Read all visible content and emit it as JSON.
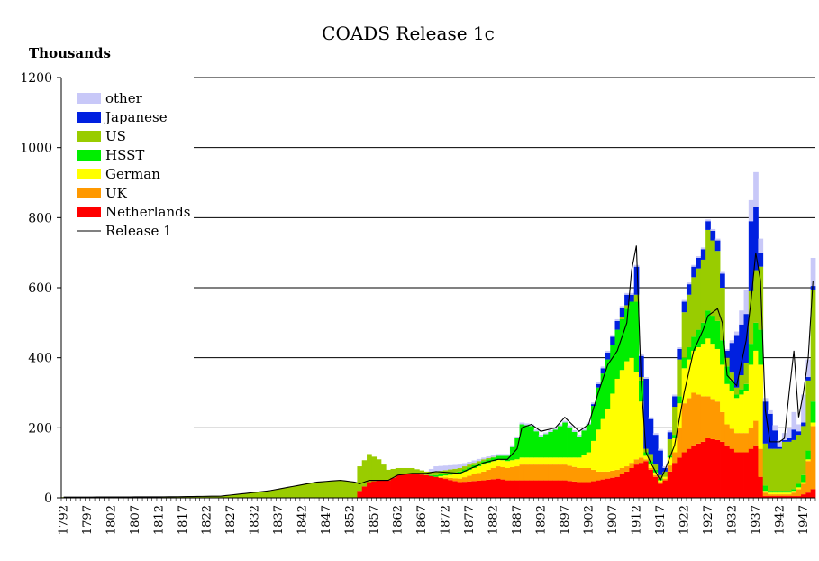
{
  "chart_data": {
    "type": "area",
    "title": "COADS Release 1c",
    "ylabel": "Thousands",
    "xlabel": "",
    "ylim": [
      0,
      1200
    ],
    "yticks": [
      0,
      200,
      400,
      600,
      800,
      1000,
      1200
    ],
    "xlim": [
      1792,
      1949
    ],
    "xticks": [
      1792,
      1797,
      1802,
      1807,
      1812,
      1817,
      1822,
      1827,
      1832,
      1837,
      1842,
      1847,
      1852,
      1857,
      1862,
      1867,
      1872,
      1877,
      1882,
      1887,
      1892,
      1897,
      1902,
      1907,
      1912,
      1917,
      1922,
      1927,
      1932,
      1937,
      1942,
      1947
    ],
    "grid": "horizontal",
    "legend_position": "top-left",
    "colors": {
      "other": "#c8c8f8",
      "Japanese": "#0020e0",
      "US": "#99cc00",
      "HSST": "#00ee00",
      "German": "#ffff00",
      "UK": "#ff9900",
      "Netherlands": "#ff0000",
      "Release 1": "#000000"
    },
    "legend": [
      "other",
      "Japanese",
      "US",
      "HSST",
      "German",
      "UK",
      "Netherlands",
      "Release 1"
    ],
    "note_stack_order": "stacked bottom to top: Netherlands, UK, German, HSST, US, Japanese, other; Release 1 drawn as line",
    "keyframes": {
      "years": [
        1792,
        1815,
        1825,
        1835,
        1845,
        1850,
        1853,
        1854,
        1856,
        1858,
        1860,
        1862,
        1865,
        1868,
        1870,
        1875,
        1880,
        1883,
        1885,
        1887,
        1888,
        1890,
        1892,
        1895,
        1897,
        1900,
        1902,
        1904,
        1906,
        1908,
        1910,
        1911,
        1912,
        1913,
        1914,
        1915,
        1917,
        1918,
        1920,
        1922,
        1924,
        1926,
        1927,
        1929,
        1930,
        1931,
        1933,
        1935,
        1936,
        1937,
        1938,
        1939,
        1940,
        1942,
        1943,
        1944,
        1945,
        1946,
        1947,
        1948,
        1949
      ],
      "Netherlands": [
        0,
        0,
        0,
        0,
        0,
        0,
        0,
        20,
        45,
        50,
        50,
        65,
        70,
        65,
        60,
        45,
        50,
        55,
        50,
        50,
        50,
        50,
        50,
        50,
        50,
        45,
        45,
        50,
        55,
        60,
        75,
        85,
        95,
        100,
        105,
        80,
        40,
        50,
        100,
        130,
        150,
        160,
        170,
        165,
        160,
        150,
        130,
        130,
        140,
        150,
        60,
        5,
        5,
        5,
        5,
        5,
        5,
        5,
        10,
        15,
        25
      ],
      "UK": [
        0,
        0,
        0,
        0,
        0,
        0,
        0,
        0,
        0,
        0,
        0,
        0,
        0,
        0,
        0,
        10,
        25,
        35,
        35,
        40,
        45,
        45,
        45,
        45,
        45,
        40,
        40,
        25,
        20,
        20,
        15,
        15,
        15,
        15,
        5,
        5,
        5,
        5,
        30,
        140,
        150,
        130,
        120,
        110,
        85,
        60,
        55,
        55,
        60,
        70,
        80,
        10,
        5,
        5,
        5,
        5,
        10,
        20,
        30,
        90,
        180
      ],
      "German": [
        0,
        0,
        0,
        0,
        0,
        0,
        0,
        0,
        0,
        0,
        0,
        0,
        0,
        0,
        0,
        15,
        20,
        20,
        20,
        20,
        20,
        20,
        20,
        20,
        20,
        30,
        45,
        120,
        180,
        260,
        300,
        300,
        250,
        160,
        10,
        10,
        5,
        5,
        40,
        100,
        120,
        150,
        165,
        150,
        135,
        115,
        100,
        120,
        180,
        200,
        240,
        5,
        5,
        5,
        5,
        5,
        5,
        5,
        5,
        5,
        10
      ],
      "HSST": [
        0,
        0,
        0,
        0,
        0,
        0,
        0,
        0,
        0,
        0,
        0,
        0,
        0,
        0,
        5,
        5,
        10,
        10,
        15,
        60,
        95,
        90,
        60,
        80,
        100,
        60,
        80,
        120,
        140,
        140,
        150,
        160,
        200,
        60,
        10,
        10,
        5,
        0,
        10,
        30,
        40,
        60,
        80,
        80,
        70,
        50,
        10,
        20,
        60,
        80,
        100,
        15,
        5,
        5,
        5,
        5,
        5,
        10,
        20,
        25,
        60
      ],
      "US": [
        2,
        3,
        5,
        20,
        45,
        50,
        45,
        70,
        80,
        60,
        30,
        20,
        15,
        10,
        10,
        10,
        5,
        0,
        0,
        0,
        0,
        0,
        0,
        0,
        0,
        0,
        0,
        0,
        0,
        0,
        10,
        0,
        20,
        10,
        10,
        20,
        10,
        15,
        80,
        130,
        170,
        180,
        230,
        200,
        150,
        25,
        20,
        60,
        150,
        150,
        180,
        120,
        120,
        120,
        140,
        140,
        140,
        140,
        140,
        200,
        320
      ],
      "Japanese": [
        0,
        0,
        0,
        0,
        0,
        0,
        0,
        0,
        0,
        0,
        0,
        0,
        0,
        0,
        0,
        0,
        0,
        0,
        0,
        0,
        0,
        0,
        0,
        0,
        0,
        0,
        0,
        10,
        20,
        25,
        30,
        20,
        80,
        60,
        200,
        100,
        70,
        10,
        30,
        30,
        30,
        30,
        25,
        30,
        40,
        20,
        150,
        140,
        200,
        180,
        40,
        120,
        100,
        5,
        5,
        10,
        30,
        10,
        10,
        10,
        10
      ],
      "other": [
        0,
        0,
        0,
        0,
        0,
        0,
        0,
        0,
        0,
        0,
        0,
        0,
        0,
        0,
        15,
        10,
        5,
        5,
        5,
        5,
        5,
        5,
        5,
        5,
        5,
        5,
        5,
        5,
        5,
        5,
        5,
        5,
        5,
        5,
        5,
        5,
        5,
        5,
        5,
        5,
        5,
        5,
        5,
        5,
        5,
        5,
        10,
        70,
        60,
        100,
        40,
        10,
        10,
        20,
        20,
        30,
        50,
        20,
        80,
        50,
        80
      ],
      "Release 1": [
        2,
        3,
        5,
        20,
        45,
        50,
        45,
        40,
        50,
        50,
        50,
        65,
        70,
        70,
        75,
        70,
        100,
        110,
        110,
        140,
        200,
        210,
        190,
        200,
        230,
        190,
        210,
        300,
        380,
        420,
        500,
        650,
        720,
        330,
        130,
        100,
        50,
        80,
        150,
        300,
        420,
        480,
        520,
        540,
        500,
        350,
        320,
        450,
        560,
        700,
        620,
        250,
        160,
        160,
        170,
        300,
        420,
        230,
        300,
        400,
        620
      ]
    }
  }
}
